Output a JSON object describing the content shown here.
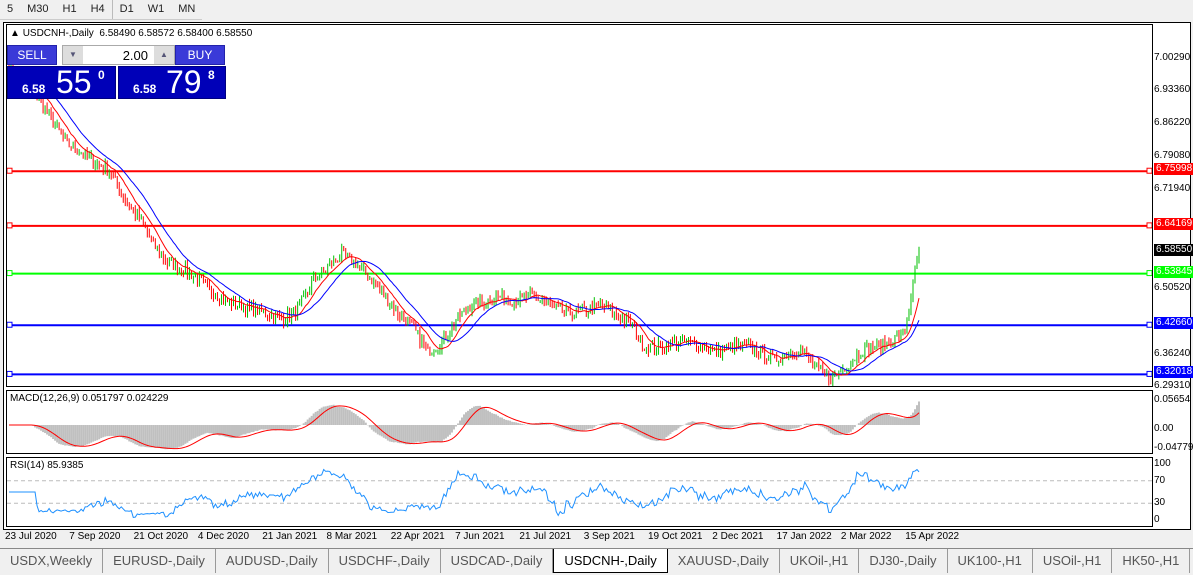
{
  "timeframes": [
    "5",
    "M30",
    "H1",
    "H4",
    "D1",
    "W1",
    "MN"
  ],
  "header": {
    "symbol": "USDCNH-,Daily",
    "ohlc": "6.58490 6.58572 6.58400 6.58550"
  },
  "trade": {
    "sell_label": "SELL",
    "buy_label": "BUY",
    "lots": "2.00",
    "sell_prefix": "6.58",
    "sell_big": "55",
    "sell_sup": "0",
    "buy_prefix": "6.58",
    "buy_big": "79",
    "buy_sup": "8"
  },
  "price_axis": [
    "7.00290",
    "6.93360",
    "6.86220",
    "6.79080",
    "6.71940",
    "6.50520",
    "6.36240",
    "6.29310"
  ],
  "price_axis_values": [
    7.0029,
    6.9336,
    6.8622,
    6.7908,
    6.7194,
    6.5052,
    6.3624,
    6.2931
  ],
  "levels": [
    {
      "value": "6.75998",
      "color": "#ff0000"
    },
    {
      "value": "6.64169",
      "color": "#ff0000"
    },
    {
      "value": "6.53845",
      "color": "#00ff00"
    },
    {
      "value": "6.42660",
      "color": "#0000ff"
    },
    {
      "value": "6.32018",
      "color": "#0000ff"
    }
  ],
  "current_price": "6.58550",
  "price_path": [
    6.99,
    6.95,
    6.92,
    6.87,
    6.82,
    6.8,
    6.78,
    6.76,
    6.7,
    6.66,
    6.6,
    6.56,
    6.55,
    6.53,
    6.5,
    6.48,
    6.47,
    6.46,
    6.45,
    6.44,
    6.46,
    6.52,
    6.55,
    6.58,
    6.56,
    6.53,
    6.49,
    6.45,
    6.42,
    6.37,
    6.39,
    6.44,
    6.47,
    6.48,
    6.49,
    6.48,
    6.49,
    6.48,
    6.46,
    6.45,
    6.46,
    6.47,
    6.45,
    6.43,
    6.38,
    6.38,
    6.39,
    6.39,
    6.38,
    6.37,
    6.38,
    6.38,
    6.37,
    6.35,
    6.37,
    6.37,
    6.33,
    6.31,
    6.34,
    6.37,
    6.38,
    6.39,
    6.41,
    6.59
  ],
  "macd": {
    "label": "MACD(12,26,9) 0.051797 0.024229",
    "axis": [
      "0.05654",
      "0.00",
      "-0.047793"
    ]
  },
  "rsi": {
    "label": "RSI(14) 85.9385",
    "axis": [
      "100",
      "70",
      "30",
      "0"
    ]
  },
  "dates": [
    "23 Jul 2020",
    "7 Sep 2020",
    "21 Oct 2020",
    "4 Dec 2020",
    "21 Jan 2021",
    "8 Mar 2021",
    "22 Apr 2021",
    "7 Jun 2021",
    "21 Jul 2021",
    "3 Sep 2021",
    "19 Oct 2021",
    "2 Dec 2021",
    "17 Jan 2022",
    "2 Mar 2022",
    "15 Apr 2022"
  ],
  "tabs": [
    "USDX,Weekly",
    "EURUSD-,Daily",
    "AUDUSD-,Daily",
    "USDCHF-,Daily",
    "USDCAD-,Daily",
    "USDCNH-,Daily",
    "XAUUSD-,Daily",
    "UKOil-,H1",
    "DJ30-,Daily",
    "UK100-,H1",
    "USOil-,H1",
    "HK50-,H1"
  ],
  "active_tab": "USDCNH-,Daily",
  "colors": {
    "bull": "#00c000",
    "bear": "#ff0000",
    "ma_fast": "#ff0000",
    "ma_slow": "#0000ff",
    "rsi": "#1e90ff",
    "macd_hist": "#c0c0c0"
  }
}
